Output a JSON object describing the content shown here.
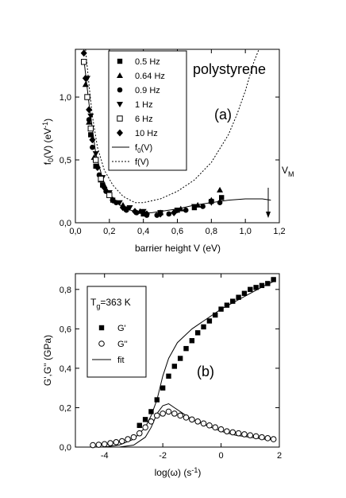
{
  "panel_a": {
    "ylabel_main": "f",
    "ylabel_sub": "0",
    "ylabel_rest": "(V) (eV",
    "ylabel_sup": "-1",
    "ylabel_end": ")",
    "xlabel": "barrier height V (eV)",
    "annotation_material": "polystyrene",
    "panel_label": "(a)",
    "vm_main": "V",
    "vm_sub": "M",
    "legend": [
      {
        "label": "0.5 Hz",
        "marker": "square-filled"
      },
      {
        "label": "0.64 Hz",
        "marker": "triangle-up-filled"
      },
      {
        "label": "0.9 Hz",
        "marker": "circle-filled"
      },
      {
        "label": "1 Hz",
        "marker": "triangle-down-filled"
      },
      {
        "label": "6 Hz",
        "marker": "square-open"
      },
      {
        "label": "10 Hz",
        "marker": "diamond-filled"
      }
    ],
    "legend_lines": [
      {
        "main": "f",
        "sub": "0",
        "rest": "(V)",
        "style": "solid"
      },
      {
        "main": "f(V)",
        "sub": "",
        "rest": "",
        "style": "dotted"
      }
    ],
    "xticks": [
      "0,0",
      "0,2",
      "0,4",
      "0,6",
      "0,8",
      "1,0",
      "1,2"
    ],
    "yticks": [
      "0,0",
      "0,5",
      "1,0"
    ]
  },
  "panel_b": {
    "ylabel": "G',G'' (GPa)",
    "xlabel": "log(ω) (s",
    "xlabel_sup": "-1",
    "xlabel_end": ")",
    "panel_label": "(b)",
    "tg_main": "T",
    "tg_sub": "g",
    "tg_rest": "=363 K",
    "legend": [
      {
        "label": "G'",
        "marker": "square-filled"
      },
      {
        "label": "G''",
        "marker": "circle-open"
      },
      {
        "label": "fit",
        "marker": "line"
      }
    ],
    "xticks": [
      "-4",
      "-2",
      "0",
      "2"
    ],
    "yticks": [
      "0,0",
      "0,2",
      "0,4",
      "0,6",
      "0,8"
    ]
  },
  "chart_data": [
    {
      "type": "scatter",
      "xlabel": "barrier height V (eV)",
      "ylabel": "f0(V) (eV-1)",
      "xlim": [
        0,
        1.2
      ],
      "ylim": [
        0,
        1.38
      ],
      "series": [
        {
          "name": "0.5 Hz",
          "x": [
            0.07,
            0.09,
            0.12,
            0.16,
            0.22,
            0.3,
            0.4,
            0.5,
            0.6,
            0.7,
            0.8,
            0.86
          ],
          "y": [
            1.0,
            0.7,
            0.45,
            0.3,
            0.18,
            0.11,
            0.07,
            0.08,
            0.1,
            0.12,
            0.17,
            0.2
          ]
        },
        {
          "name": "0.64 Hz",
          "x": [
            0.06,
            0.08,
            0.11,
            0.15,
            0.2,
            0.28,
            0.38,
            0.5,
            0.62,
            0.72,
            0.8,
            0.85
          ],
          "y": [
            1.1,
            0.8,
            0.52,
            0.34,
            0.22,
            0.14,
            0.09,
            0.08,
            0.11,
            0.14,
            0.18,
            0.26
          ]
        },
        {
          "name": "0.9 Hz",
          "x": [
            0.08,
            0.1,
            0.14,
            0.18,
            0.24,
            0.3,
            0.36,
            0.42,
            0.48,
            0.55,
            0.65,
            0.75,
            0.85
          ],
          "y": [
            0.82,
            0.6,
            0.38,
            0.25,
            0.16,
            0.1,
            0.08,
            0.06,
            0.06,
            0.07,
            0.1,
            0.13,
            0.16
          ]
        },
        {
          "name": "1 Hz",
          "x": [
            0.07,
            0.09,
            0.12,
            0.16,
            0.2,
            0.26,
            0.32,
            0.4,
            0.5,
            0.6,
            0.7,
            0.8
          ],
          "y": [
            1.15,
            0.85,
            0.55,
            0.36,
            0.24,
            0.16,
            0.12,
            0.09,
            0.08,
            0.1,
            0.13,
            0.16
          ]
        },
        {
          "name": "6 Hz",
          "x": [
            0.05,
            0.07,
            0.09,
            0.12,
            0.15,
            0.2
          ],
          "y": [
            1.28,
            1.0,
            0.75,
            0.5,
            0.35,
            0.22
          ]
        },
        {
          "name": "10 Hz",
          "x": [
            0.05,
            0.06,
            0.08,
            0.1,
            0.13,
            0.17,
            0.22,
            0.28,
            0.35,
            0.42,
            0.5,
            0.58
          ],
          "y": [
            1.35,
            1.15,
            0.9,
            0.66,
            0.44,
            0.28,
            0.18,
            0.12,
            0.09,
            0.07,
            0.07,
            0.08
          ]
        },
        {
          "name": "f0(V)",
          "style": "line",
          "x": [
            0.05,
            0.08,
            0.12,
            0.16,
            0.2,
            0.25,
            0.3,
            0.35,
            0.4,
            0.45,
            0.5,
            0.6,
            0.7,
            0.8,
            0.9,
            1.0,
            1.1,
            1.15
          ],
          "y": [
            1.3,
            0.95,
            0.55,
            0.35,
            0.23,
            0.15,
            0.11,
            0.09,
            0.08,
            0.08,
            0.09,
            0.11,
            0.14,
            0.16,
            0.18,
            0.19,
            0.19,
            0.18
          ]
        },
        {
          "name": "f(V)",
          "style": "dotted",
          "x": [
            0.06,
            0.08,
            0.1,
            0.13,
            0.17,
            0.22,
            0.28,
            0.35,
            0.4,
            0.5,
            0.6,
            0.7,
            0.8,
            0.9,
            0.95,
            1.0,
            1.05,
            1.08
          ],
          "y": [
            1.38,
            1.1,
            0.85,
            0.6,
            0.42,
            0.3,
            0.21,
            0.16,
            0.16,
            0.19,
            0.25,
            0.34,
            0.48,
            0.7,
            0.86,
            1.05,
            1.28,
            1.38
          ]
        }
      ]
    },
    {
      "type": "scatter",
      "xlabel": "log(ω) (s-1)",
      "ylabel": "G',G'' (GPa)",
      "xlim": [
        -5,
        2
      ],
      "ylim": [
        0,
        0.88
      ],
      "series": [
        {
          "name": "G'",
          "x": [
            -2.8,
            -2.6,
            -2.4,
            -2.2,
            -2.0,
            -1.8,
            -1.6,
            -1.4,
            -1.2,
            -1.0,
            -0.8,
            -0.6,
            -0.4,
            -0.2,
            0.0,
            0.2,
            0.4,
            0.6,
            0.8,
            1.0,
            1.2,
            1.4,
            1.6,
            1.8
          ],
          "y": [
            0.11,
            0.14,
            0.18,
            0.24,
            0.3,
            0.36,
            0.41,
            0.45,
            0.5,
            0.54,
            0.58,
            0.61,
            0.64,
            0.67,
            0.7,
            0.72,
            0.74,
            0.76,
            0.78,
            0.8,
            0.81,
            0.82,
            0.83,
            0.85
          ]
        },
        {
          "name": "G''",
          "x": [
            -4.4,
            -4.2,
            -4.0,
            -3.8,
            -3.6,
            -3.4,
            -3.2,
            -3.0,
            -2.8,
            -2.6,
            -2.4,
            -2.2,
            -2.0,
            -1.8,
            -1.6,
            -1.4,
            -1.2,
            -1.0,
            -0.8,
            -0.6,
            -0.4,
            -0.2,
            0.0,
            0.2,
            0.4,
            0.6,
            0.8,
            1.0,
            1.2,
            1.4,
            1.6,
            1.8
          ],
          "y": [
            0.01,
            0.012,
            0.015,
            0.02,
            0.025,
            0.03,
            0.04,
            0.05,
            0.07,
            0.1,
            0.13,
            0.16,
            0.17,
            0.18,
            0.17,
            0.16,
            0.15,
            0.14,
            0.13,
            0.12,
            0.11,
            0.1,
            0.09,
            0.08,
            0.075,
            0.07,
            0.065,
            0.06,
            0.055,
            0.05,
            0.045,
            0.04
          ]
        },
        {
          "name": "fit",
          "style": "line",
          "x": [
            -5,
            -4,
            -3.5,
            -3,
            -2.6,
            -2.4,
            -2.2,
            -2.0,
            -1.8,
            -1.5,
            -1.0,
            -0.5,
            0.0,
            0.5,
            1.0,
            1.5,
            1.8
          ],
          "y": [
            0.0,
            0.0,
            0.01,
            0.04,
            0.1,
            0.16,
            0.24,
            0.36,
            0.45,
            0.53,
            0.6,
            0.65,
            0.7,
            0.74,
            0.78,
            0.82,
            0.84
          ]
        },
        {
          "name": "fit",
          "style": "line",
          "x": [
            -5,
            -4,
            -3.5,
            -3,
            -2.6,
            -2.4,
            -2.2,
            -2.0,
            -1.8,
            -1.6,
            -1.4,
            -1.0,
            -0.5,
            0.0,
            0.5,
            1.0,
            1.5,
            1.8
          ],
          "y": [
            0.0,
            0.0,
            0.0,
            0.01,
            0.05,
            0.1,
            0.17,
            0.21,
            0.22,
            0.2,
            0.18,
            0.14,
            0.11,
            0.08,
            0.06,
            0.05,
            0.04,
            0.04
          ]
        }
      ]
    }
  ]
}
